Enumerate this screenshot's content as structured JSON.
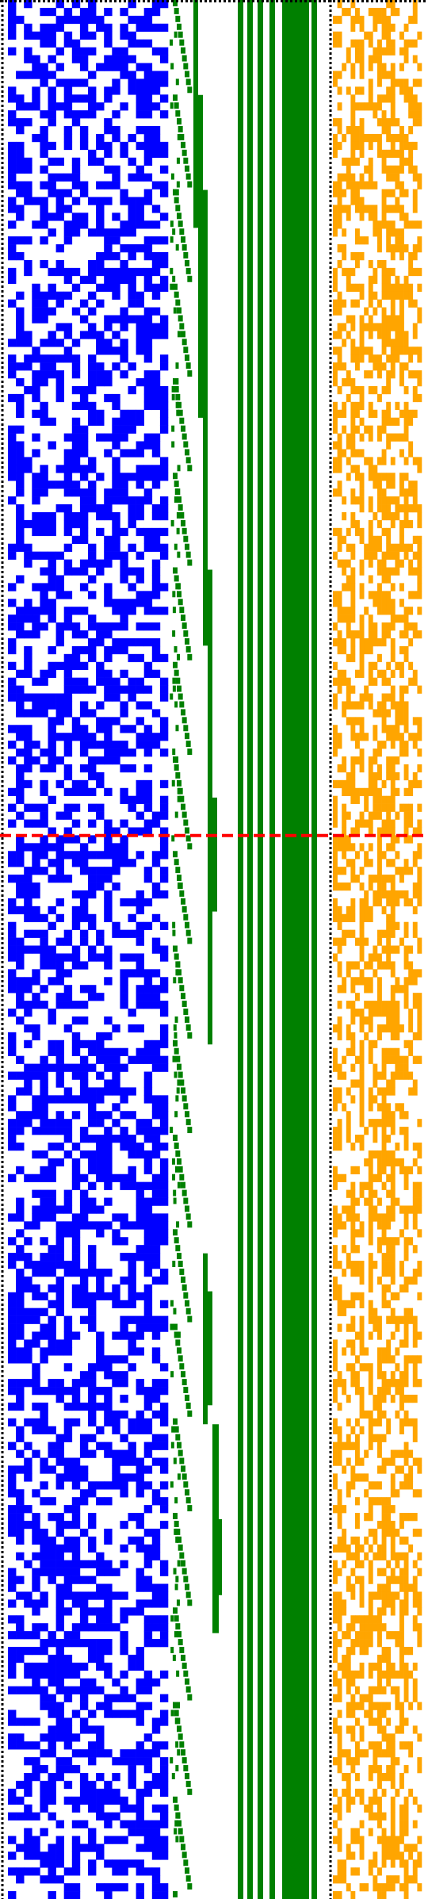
{
  "colors": {
    "background": "#ffffff",
    "left_panel": "#0000ff",
    "middle_panel": "#008000",
    "right_panel": "#ffa500",
    "separator": "#000000",
    "marker_line": "#ff0000"
  },
  "chart_data": {
    "type": "heatmap",
    "panels": [
      "blue-dot-matrix",
      "green-staircase-and-bars",
      "orange-dot-matrix"
    ],
    "rows": 241,
    "red_marker_row_fraction": 0.44,
    "grid": false,
    "legend": "none"
  }
}
